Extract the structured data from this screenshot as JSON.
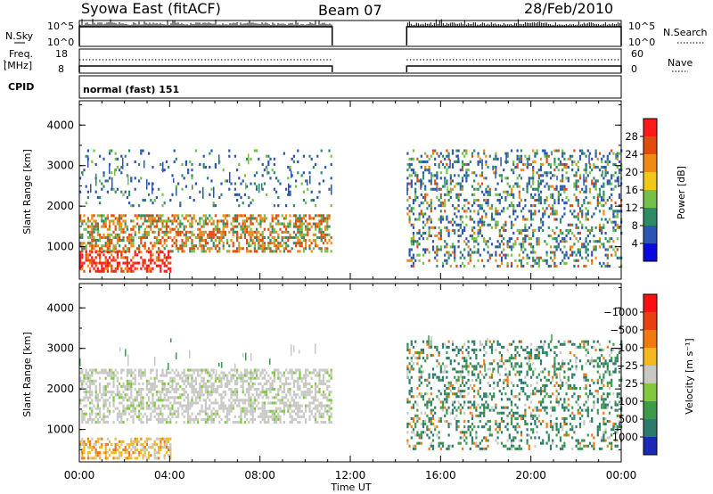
{
  "header": {
    "station": "Syowa East (fitACF)",
    "beam": "Beam 07",
    "date": "28/Feb/2010"
  },
  "aux_panel": {
    "nsky_label": "N.Sky",
    "nsky_ticks": [
      "10^5",
      "10^0"
    ],
    "nsearch_label": "N.Search",
    "nsearch_ticks": [
      "10^5",
      "10^0"
    ],
    "freq_label_1": "Freq.",
    "freq_label_2": "[MHz]",
    "freq_ticks": [
      "18",
      "8"
    ],
    "nave_label": "Nave",
    "nave_ticks": [
      "60",
      "0"
    ],
    "cpid_label": "CPID",
    "cpid_value": "normal (fast) 151"
  },
  "chart_data": [
    {
      "type": "heatmap",
      "title": "",
      "xlabel": "",
      "ylabel": "Slant Range [km]",
      "ylim": [
        200,
        4600
      ],
      "yticks": [
        "1000",
        "2000",
        "3000",
        "4000"
      ],
      "data_gap_hours": [
        11.2,
        14.5
      ],
      "colorbar": {
        "label": "Power [dB]",
        "ticks": [
          "4",
          "8",
          "12",
          "16",
          "20",
          "24",
          "28"
        ],
        "colors": [
          "#0a0adc",
          "#2a55b0",
          "#2f8a66",
          "#74c04a",
          "#f0c818",
          "#f08a14",
          "#e04c0e",
          "#ff1a1a"
        ]
      },
      "echo_bands": [
        {
          "start_hour": 0.0,
          "end_hour": 11.2,
          "range_km": [
            900,
            1800
          ],
          "level": "high"
        },
        {
          "start_hour": 0.0,
          "end_hour": 4.0,
          "range_km": [
            400,
            900
          ],
          "level": "very high"
        },
        {
          "start_hour": 0.0,
          "end_hour": 11.2,
          "range_km": [
            2000,
            3400
          ],
          "level": "low"
        },
        {
          "start_hour": 14.5,
          "end_hour": 24.0,
          "range_km": [
            500,
            3400
          ],
          "level": "mixed"
        }
      ]
    },
    {
      "type": "heatmap",
      "title": "",
      "xlabel": "Time UT",
      "ylabel": "Slant Range [km]",
      "ylim": [
        200,
        4600
      ],
      "yticks": [
        "1000",
        "2000",
        "3000",
        "4000"
      ],
      "xticks": [
        "00:00",
        "04:00",
        "08:00",
        "12:00",
        "16:00",
        "20:00",
        "00:00"
      ],
      "xlim_hours": [
        0,
        24
      ],
      "data_gap_hours": [
        11.2,
        14.5
      ],
      "colorbar": {
        "label": "Velocity [m s⁻¹]",
        "ticks": [
          "1000",
          "500",
          "100",
          "25",
          "−25",
          "−100",
          "−500",
          "−1000"
        ],
        "colors": [
          "#1a2ab4",
          "#2b7a6a",
          "#3c9a4a",
          "#80c83c",
          "#c8c8c4",
          "#f6b820",
          "#f07a10",
          "#e84010",
          "#ff1010"
        ]
      },
      "echo_bands": [
        {
          "start_hour": 0.0,
          "end_hour": 11.2,
          "range_km": [
            1200,
            2500
          ],
          "level": "near zero"
        },
        {
          "start_hour": 0.0,
          "end_hour": 4.0,
          "range_km": [
            300,
            800
          ],
          "level": "negative"
        },
        {
          "start_hour": 14.5,
          "end_hour": 24.0,
          "range_km": [
            500,
            3200
          ],
          "level": "positive"
        }
      ]
    }
  ]
}
